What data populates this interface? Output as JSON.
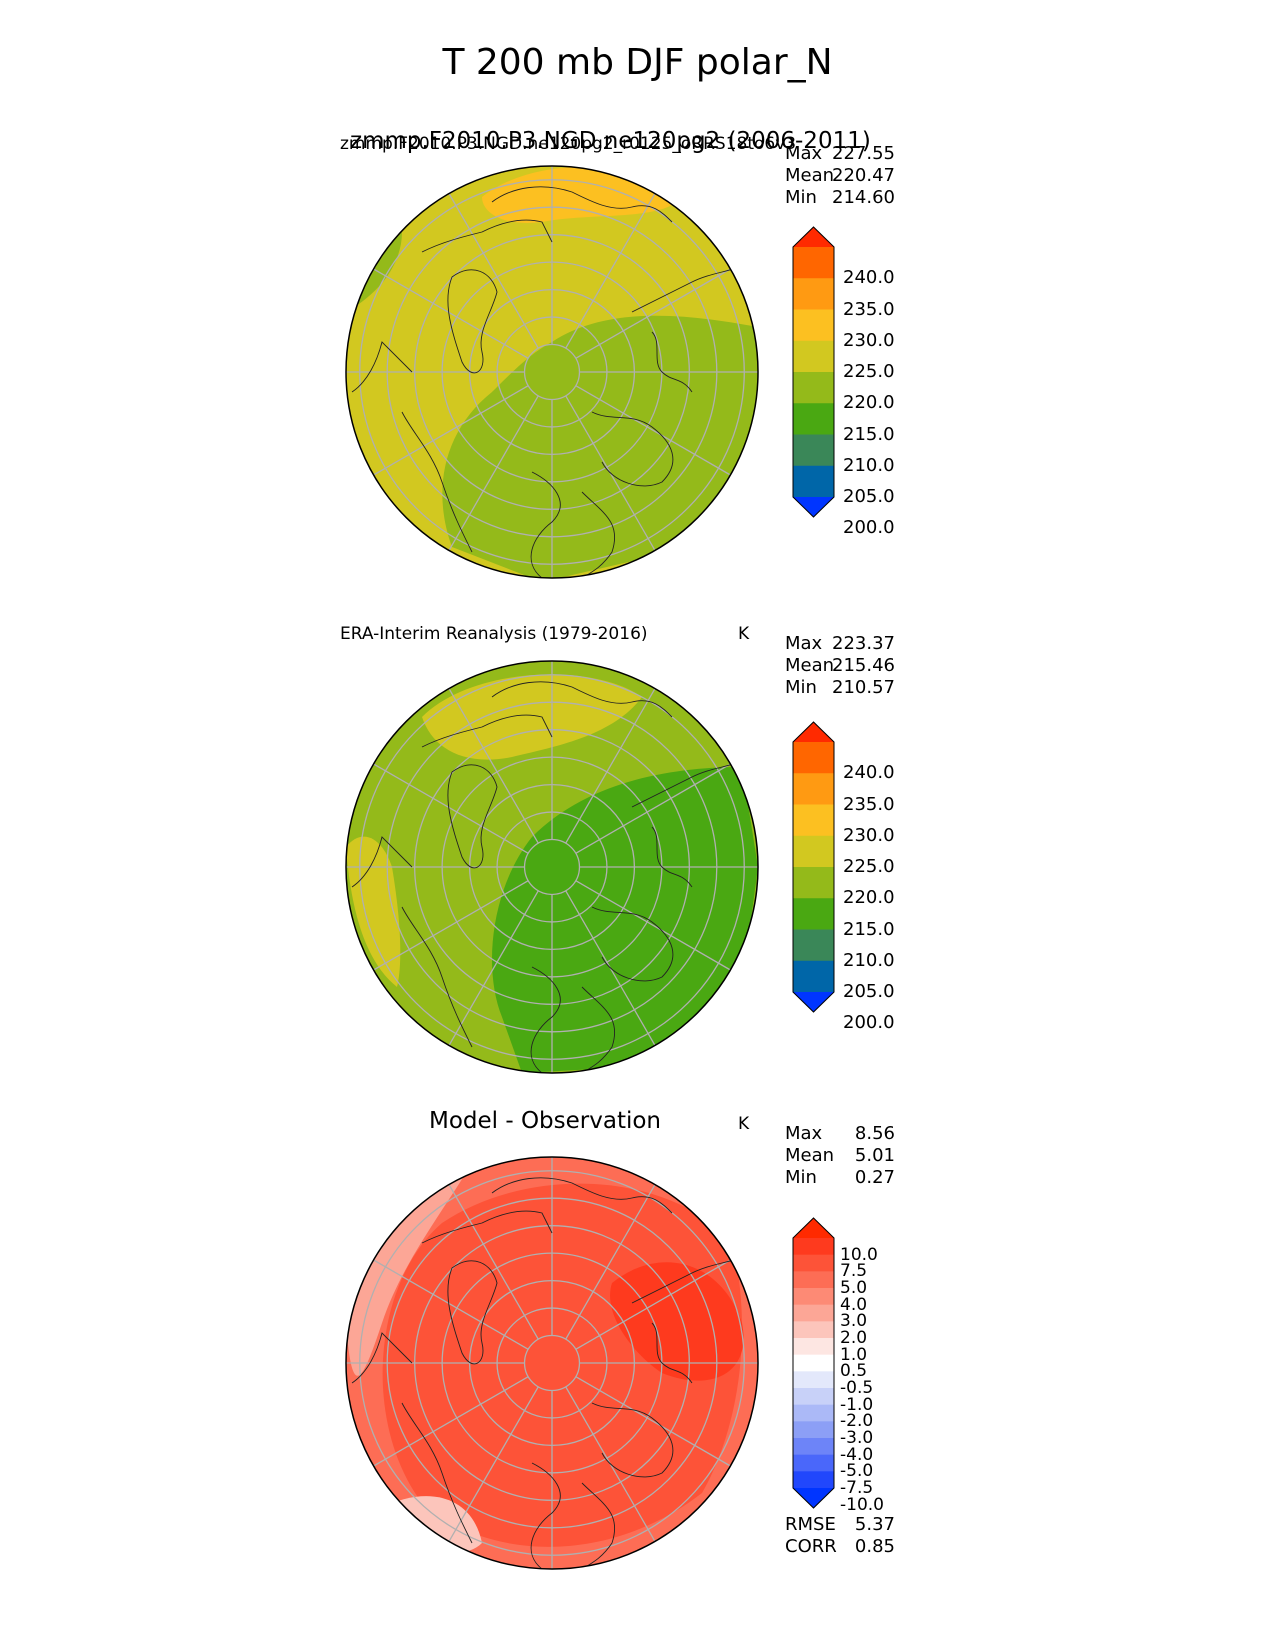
{
  "main_title": "T 200 mb DJF polar_N",
  "chart_data": [
    {
      "type": "heatmap",
      "projection": "north polar stereographic",
      "title_left": "zmmp.F2010.P3.NGD.ne120pg2_r0125_oRRS18to6v3",
      "title_center": "zmmp.F2010.P3.NGD.ne120pg2 (2006-2011)",
      "units": "",
      "stats": {
        "max_label": "Max",
        "mean_label": "Mean",
        "min_label": "Min",
        "max": "227.55",
        "mean": "220.47",
        "min": "214.60"
      },
      "colorbar": {
        "levels": [
          "240.0",
          "235.0",
          "230.0",
          "225.0",
          "220.0",
          "215.0",
          "210.0",
          "205.0",
          "200.0"
        ],
        "colors": [
          "#ff2a00",
          "#ff6600",
          "#ff9a12",
          "#fcc021",
          "#d2c820",
          "#94ba1a",
          "#4aa812",
          "#3a8758",
          "#0066a8",
          "#0035ff"
        ]
      },
      "field_description": "Mostly 220-225 K with a 215-220 K region over Eurasia and Arctic; 225-230 K near top",
      "regions": [
        {
          "range": "220-225",
          "color": "#d2c820"
        },
        {
          "range": "215-220",
          "color": "#94ba1a"
        },
        {
          "range": "225-230",
          "color": "#fcc021"
        },
        {
          "range": "215-220 small",
          "color": "#94ba1a"
        }
      ]
    },
    {
      "type": "heatmap",
      "projection": "north polar stereographic",
      "title_left": "ERA-Interim Reanalysis (1979-2016)",
      "units": "K",
      "stats": {
        "max_label": "Max",
        "mean_label": "Mean",
        "min_label": "Min",
        "max": "223.37",
        "mean": "215.46",
        "min": "210.57"
      },
      "colorbar": {
        "levels": [
          "240.0",
          "235.0",
          "230.0",
          "225.0",
          "220.0",
          "215.0",
          "210.0",
          "205.0",
          "200.0"
        ],
        "colors": [
          "#ff2a00",
          "#ff6600",
          "#ff9a12",
          "#fcc021",
          "#d2c820",
          "#94ba1a",
          "#4aa812",
          "#3a8758",
          "#0066a8",
          "#0035ff"
        ]
      },
      "regions": [
        {
          "range": "215-220",
          "color": "#94ba1a"
        },
        {
          "range": "210-215",
          "color": "#4aa812"
        },
        {
          "range": "220-225",
          "color": "#d2c820"
        },
        {
          "range": "220-225 west",
          "color": "#d2c820"
        }
      ]
    },
    {
      "type": "heatmap",
      "projection": "north polar stereographic",
      "title_center": "Model - Observation",
      "units": "K",
      "stats": {
        "max_label": "Max",
        "mean_label": "Mean",
        "min_label": "Min",
        "max": "8.56",
        "mean": "5.01",
        "min": "0.27"
      },
      "colorbar": {
        "levels": [
          "10.0",
          "7.5",
          "5.0",
          "4.0",
          "3.0",
          "2.0",
          "1.0",
          "0.5",
          "-0.5",
          "-1.0",
          "-2.0",
          "-3.0",
          "-4.0",
          "-5.0",
          "-7.5",
          "-10.0"
        ],
        "colors": [
          "#ff2a00",
          "#fe3a1e",
          "#fd5338",
          "#fd6d55",
          "#fd8a75",
          "#fca696",
          "#fcc5bb",
          "#fde6e2",
          "#ffffff",
          "#e3e8fb",
          "#c8d1f8",
          "#abb9f7",
          "#8c9ff6",
          "#6d84f8",
          "#4a67fa",
          "#2147fc",
          "#0035ff"
        ]
      },
      "regions": [
        {
          "range": "4-5",
          "color": "#fd6d55"
        },
        {
          "range": "5-7.5",
          "color": "#fd5338"
        },
        {
          "range": "7.5-10",
          "color": "#fe3a1e"
        },
        {
          "range": "2-3",
          "color": "#fca696"
        },
        {
          "range": "1-2",
          "color": "#fcc5bb"
        }
      ],
      "rmse_label": "RMSE",
      "rmse": "5.37",
      "corr_label": "CORR",
      "corr": "0.85"
    }
  ]
}
